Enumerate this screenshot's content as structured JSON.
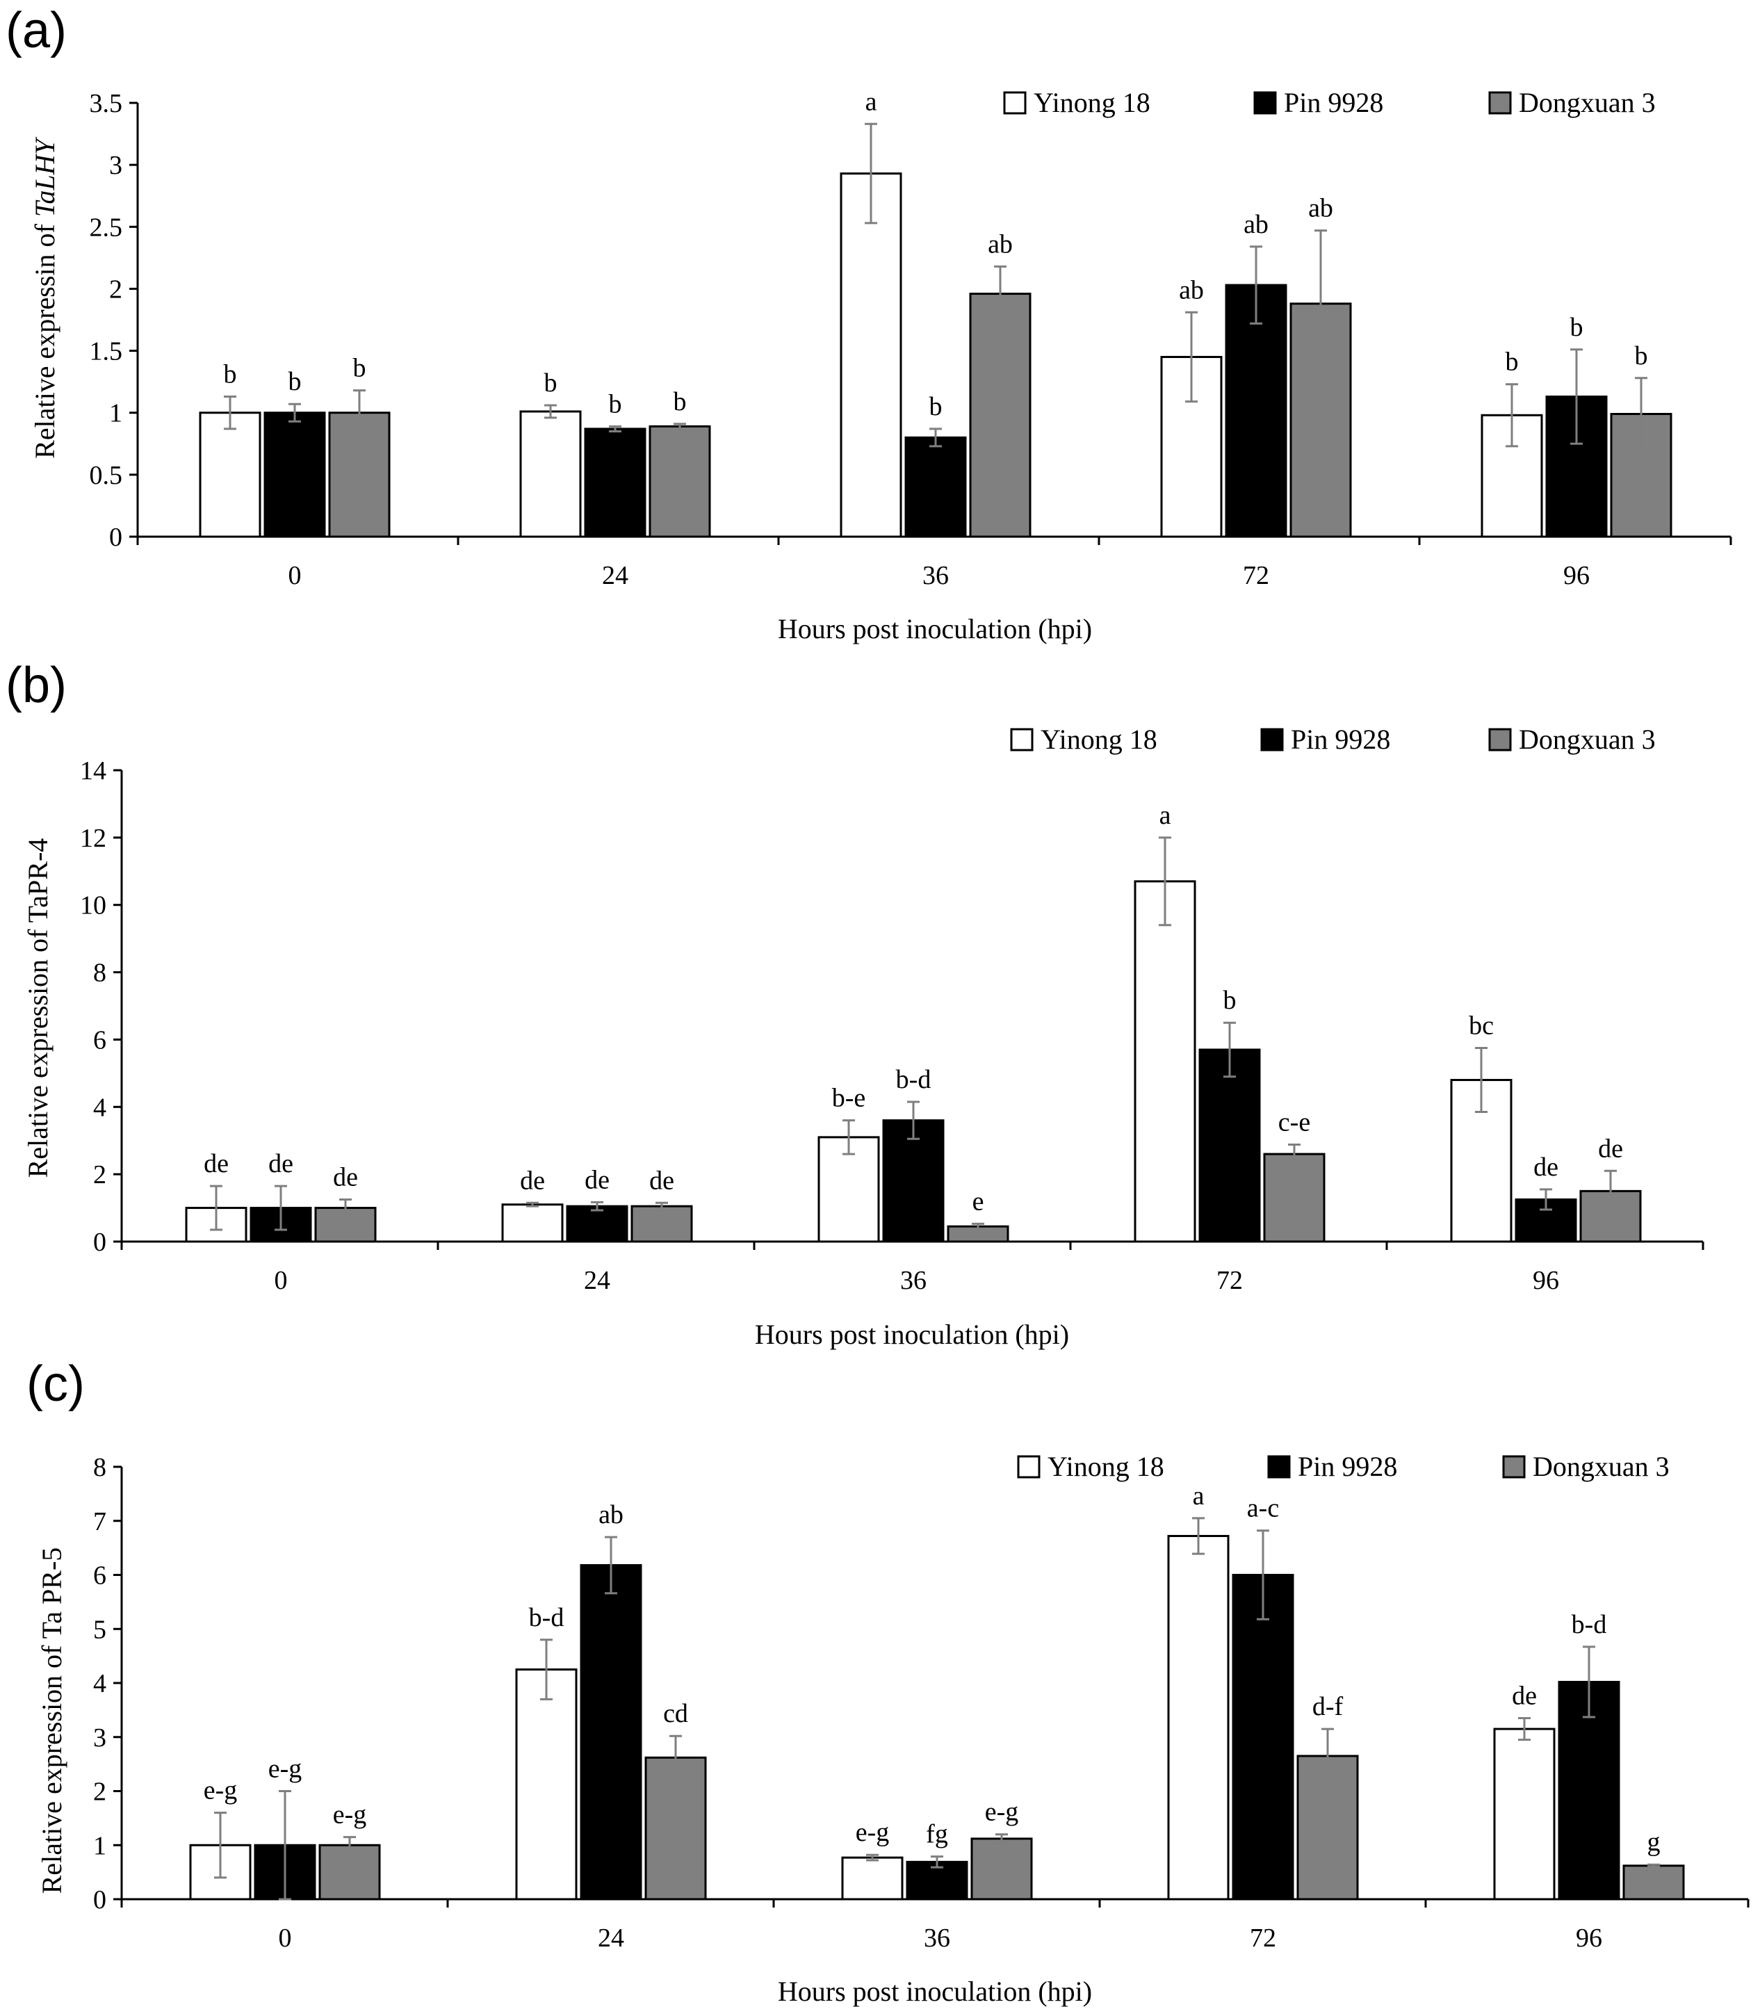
{
  "legend": [
    "Yinong 18",
    "Pin 9928",
    "Dongxuan 3"
  ],
  "colors": {
    "Yinong 18": "#ffffff",
    "Pin 9928": "#000000",
    "Dongxuan 3": "#808080",
    "error_bar": "#7f7f7f"
  },
  "chart_data": [
    {
      "panel": "(a)",
      "type": "bar",
      "categories": [
        "0",
        "24",
        "36",
        "72",
        "96"
      ],
      "xlabel": "Hours post inoculation (hpi)",
      "ylabel_prefix": "Relative expressin of ",
      "ylabel_gene": "TaLHY",
      "ylim": [
        0,
        3.5
      ],
      "yticks": [
        "0",
        "0.5",
        "1",
        "1.5",
        "2",
        "2.5",
        "3",
        "3.5"
      ],
      "series": [
        {
          "name": "Yinong 18",
          "values": [
            1.0,
            1.01,
            2.93,
            1.45,
            0.98
          ],
          "errors": [
            0.13,
            0.05,
            0.4,
            0.36,
            0.25
          ],
          "letters": [
            "b",
            "b",
            "a",
            "ab",
            "b"
          ]
        },
        {
          "name": "Pin 9928",
          "values": [
            1.0,
            0.87,
            0.8,
            2.03,
            1.13
          ],
          "errors": [
            0.07,
            0.02,
            0.07,
            0.31,
            0.38
          ],
          "letters": [
            "b",
            "b",
            "b",
            "ab",
            "b"
          ]
        },
        {
          "name": "Dongxuan 3",
          "values": [
            1.0,
            0.89,
            1.96,
            1.88,
            0.99
          ],
          "errors": [
            0.18,
            0.02,
            0.22,
            0.59,
            0.29
          ],
          "letters": [
            "b",
            "b",
            "ab",
            "ab",
            "b"
          ]
        }
      ]
    },
    {
      "panel": "(b)",
      "type": "bar",
      "categories": [
        "0",
        "24",
        "36",
        "72",
        "96"
      ],
      "xlabel": "Hours post inoculation (hpi)",
      "ylabel": "Relative expression of TaPR-4",
      "ylim": [
        0,
        14
      ],
      "yticks": [
        "0",
        "2",
        "4",
        "6",
        "8",
        "10",
        "12",
        "14"
      ],
      "series": [
        {
          "name": "Yinong 18",
          "values": [
            1.0,
            1.1,
            3.1,
            10.7,
            4.8
          ],
          "errors": [
            0.65,
            0.05,
            0.5,
            1.3,
            0.95
          ],
          "letters": [
            "de",
            "de",
            "b-e",
            "a",
            "bc"
          ]
        },
        {
          "name": "Pin 9928",
          "values": [
            1.0,
            1.05,
            3.6,
            5.7,
            1.25
          ],
          "errors": [
            0.65,
            0.12,
            0.55,
            0.8,
            0.3
          ],
          "letters": [
            "de",
            "de",
            "b-d",
            "b",
            "de"
          ]
        },
        {
          "name": "Dongxuan 3",
          "values": [
            1.0,
            1.05,
            0.45,
            2.6,
            1.5
          ],
          "errors": [
            0.25,
            0.1,
            0.08,
            0.28,
            0.6
          ],
          "letters": [
            "de",
            "de",
            "e",
            "c-e",
            "de"
          ]
        }
      ]
    },
    {
      "panel": "(c)",
      "type": "bar",
      "categories": [
        "0",
        "24",
        "36",
        "72",
        "96"
      ],
      "xlabel": "Hours post inoculation (hpi)",
      "ylabel": "Relative expression of Ta PR-5",
      "ylim": [
        0,
        8
      ],
      "yticks": [
        "0",
        "1",
        "2",
        "3",
        "4",
        "5",
        "6",
        "7",
        "8"
      ],
      "series": [
        {
          "name": "Yinong 18",
          "values": [
            1.0,
            4.25,
            0.77,
            6.72,
            3.15
          ],
          "errors": [
            0.6,
            0.55,
            0.05,
            0.33,
            0.2
          ],
          "letters": [
            "e-g",
            "b-d",
            "e-g",
            "a",
            "de"
          ]
        },
        {
          "name": "Pin 9928",
          "values": [
            1.0,
            6.18,
            0.69,
            6.0,
            4.02
          ],
          "errors": [
            1.0,
            0.52,
            0.1,
            0.82,
            0.65
          ],
          "letters": [
            "e-g",
            "ab",
            "fg",
            "a-c",
            "b-d"
          ]
        },
        {
          "name": "Dongxuan 3",
          "values": [
            1.0,
            2.62,
            1.12,
            2.65,
            0.62
          ],
          "errors": [
            0.15,
            0.4,
            0.08,
            0.5,
            0.02
          ],
          "letters": [
            "e-g",
            "cd",
            "e-g",
            "d-f",
            "g"
          ]
        }
      ]
    }
  ]
}
